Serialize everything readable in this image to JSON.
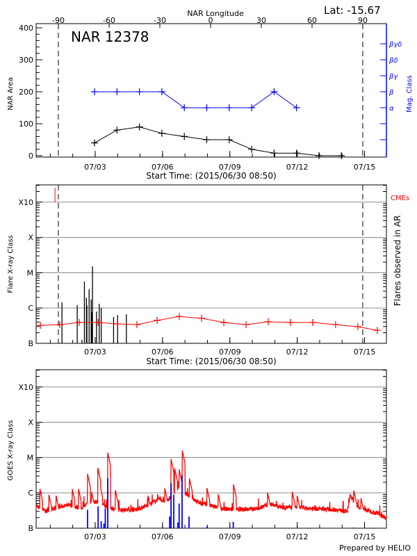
{
  "header": {
    "lat_label": "Lat: -15.67",
    "prepared_by": "Prepared by HELIO"
  },
  "colors": {
    "area": "#000000",
    "mag": "#0000ff",
    "flare": "#000000",
    "background": "#ff0000",
    "goes_long": "#ff0000",
    "goes_short": "#0000ff",
    "cme": "#ff0000",
    "grid": "#999999"
  },
  "chart_data": [
    {
      "type": "line",
      "title": "NAR 12378",
      "xlabel": "Start Time: (2015/06/30 08:50)",
      "x_units": "days since start",
      "xlim": [
        0,
        15.6
      ],
      "x_tick_labels": [
        {
          "day": 2.63,
          "label": "07/03"
        },
        {
          "day": 5.63,
          "label": "07/06"
        },
        {
          "day": 8.63,
          "label": "07/09"
        },
        {
          "day": 11.63,
          "label": "07/12"
        },
        {
          "day": 14.63,
          "label": "07/15"
        }
      ],
      "top_axis": {
        "label": "NAR Longitude",
        "ticks": [
          {
            "lon": -90,
            "label": "-90"
          },
          {
            "lon": -60,
            "label": "-60"
          },
          {
            "lon": -30,
            "label": "-30"
          },
          {
            "lon": 0,
            "label": "0"
          },
          {
            "lon": 30,
            "label": "30"
          },
          {
            "lon": 60,
            "label": "60"
          },
          {
            "lon": 90,
            "label": "90"
          }
        ],
        "limb_days": [
          0.99,
          14.55
        ]
      },
      "ylabel": "NAR Area",
      "ylim": [
        0,
        400
      ],
      "y_ticks": [
        "0",
        "100",
        "200",
        "300",
        "400"
      ],
      "y2label": "Mag. Class",
      "y2_ticks": [
        {
          "area": 50,
          "label": ""
        },
        {
          "area": 100,
          "label": ""
        },
        {
          "area": 150,
          "label": "α"
        },
        {
          "area": 200,
          "label": "β"
        },
        {
          "area": 250,
          "label": "βγ"
        },
        {
          "area": 300,
          "label": "βδ"
        },
        {
          "area": 350,
          "label": "βγδ"
        }
      ],
      "series": [
        {
          "name": "NAR Area",
          "x": [
            2.6,
            3.6,
            4.6,
            5.6,
            6.6,
            7.6,
            8.6,
            9.6,
            10.6,
            11.6,
            12.6,
            13.6
          ],
          "values": [
            40,
            80,
            90,
            70,
            60,
            50,
            50,
            20,
            8,
            8,
            0,
            0
          ]
        },
        {
          "name": "Mag. Class",
          "x": [
            2.6,
            3.6,
            4.6,
            5.6,
            6.6,
            7.6,
            8.6,
            9.6,
            10.6,
            11.6
          ],
          "values": [
            "β",
            "β",
            "β",
            "β",
            "α",
            "α",
            "α",
            "α",
            "β",
            "α"
          ]
        }
      ]
    },
    {
      "type": "bar",
      "xlabel": "Start Time: (2015/06/30 08:50)",
      "ylabel": "Flare X-ray Class",
      "y2label": "Flares observed in AR",
      "legend": "CMEs",
      "y_scale": "log",
      "ylim_log_flux": [
        -7,
        -3.2
      ],
      "y_ticks": [
        {
          "log": -7,
          "label": "B"
        },
        {
          "log": -6,
          "label": "C"
        },
        {
          "log": -5,
          "label": "M"
        },
        {
          "log": -4,
          "label": "X"
        },
        {
          "log": -3,
          "label": "X10"
        }
      ],
      "flares": {
        "day": [
          1.15,
          1.83,
          2.04,
          2.15,
          2.24,
          2.26,
          2.36,
          2.45,
          2.48,
          2.51,
          2.69,
          2.81,
          2.9,
          3.45,
          3.63,
          4.02
        ],
        "log_flux": [
          -5.84,
          -5.92,
          -6.9,
          -5.25,
          -5.71,
          -5.92,
          -5.47,
          -5.76,
          -6.12,
          -4.82,
          -6.1,
          -5.88,
          -6.0,
          -6.25,
          -6.2,
          -6.18
        ]
      },
      "cmes": {
        "day": [
          0.84
        ]
      },
      "background": {
        "day": [
          0.19,
          1.05,
          1.92,
          2.76,
          3.62,
          4.49,
          5.39,
          6.38,
          7.37,
          8.36,
          9.35,
          10.34,
          11.33,
          12.32,
          13.34,
          14.33,
          15.2
        ],
        "log_flux": [
          -6.49,
          -6.47,
          -6.41,
          -6.41,
          -6.45,
          -6.47,
          -6.35,
          -6.24,
          -6.29,
          -6.41,
          -6.47,
          -6.39,
          -6.41,
          -6.41,
          -6.47,
          -6.53,
          -6.63
        ]
      }
    },
    {
      "type": "line",
      "ylabel": "GOES X-ray Class",
      "y_scale": "log",
      "ylim_log_flux": [
        -7,
        -3.2
      ],
      "baseline": {
        "day": [
          0.01,
          0.43,
          1.15,
          1.51,
          1.99,
          2.35,
          2.71,
          3.19,
          3.67,
          4.39,
          4.87,
          5.47,
          5.83,
          6.31,
          6.79,
          7.27,
          7.87,
          8.23,
          8.95,
          9.91,
          10.39,
          10.99,
          11.59,
          12.19,
          13.39,
          13.87,
          13.99,
          14.35,
          15.19,
          15.6
        ],
        "log_flux": [
          -6.38,
          -6.52,
          -6.38,
          -6.35,
          -6.44,
          -6.28,
          -6.25,
          -6.41,
          -6.48,
          -6.48,
          -6.38,
          -6.18,
          -6.25,
          -5.86,
          -6.08,
          -6.28,
          -6.38,
          -6.44,
          -6.48,
          -6.44,
          -6.31,
          -6.41,
          -6.41,
          -6.44,
          -6.48,
          -6.52,
          -6.08,
          -6.41,
          -6.58,
          -6.71
        ]
      },
      "spikes": {
        "day": [
          0.17,
          0.57,
          0.89,
          1.61,
          1.89,
          2.29,
          2.47,
          2.75,
          2.83,
          3.19,
          3.53,
          4.99,
          5.41,
          5.73,
          6.01,
          6.17,
          6.37,
          6.51,
          6.83,
          7.61,
          8.11,
          8.79,
          10.31,
          11.41,
          11.63,
          14.15,
          14.47
        ],
        "log_flux": [
          -5.89,
          -6.05,
          -6.08,
          -5.89,
          -5.89,
          -5.46,
          -5.97,
          -5.29,
          -5.73,
          -4.86,
          -5.92,
          -6.08,
          -6.04,
          -5.87,
          -5.04,
          -5.3,
          -5.33,
          -4.8,
          -5.59,
          -5.86,
          -6.04,
          -5.76,
          -5.99,
          -5.97,
          -6.08,
          -5.93,
          -6.15
        ]
      },
      "short_channel": {
        "day": [
          2.29,
          2.76,
          2.9,
          3.02,
          3.08,
          3.19,
          5.95,
          6.01,
          6.13,
          6.31,
          6.37,
          6.5,
          6.81,
          7.61,
          8.78,
          14.15
        ],
        "log_flux": [
          -6.48,
          -6.38,
          -6.8,
          -6.87,
          -6.44,
          -5.58,
          -6.67,
          -5.73,
          -6.05,
          -6.84,
          -6.3,
          -5.5,
          -6.67,
          -6.95,
          -6.82,
          -6.98
        ]
      }
    }
  ]
}
